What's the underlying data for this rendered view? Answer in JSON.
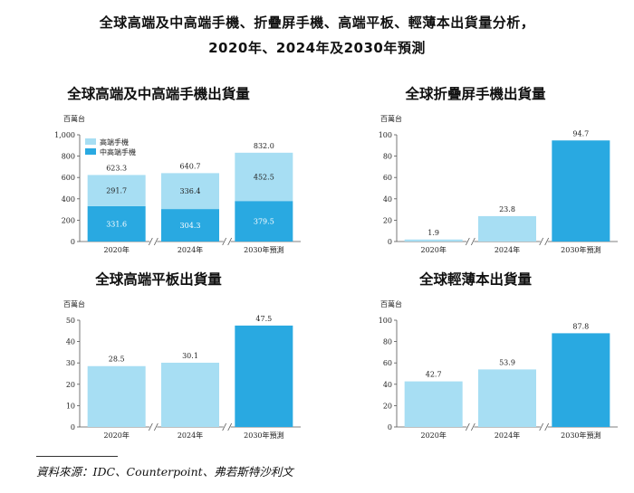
{
  "title_line1": "全球高端及中高端手機、折疊屏手機、高端平板、輕薄本出貨量分析，",
  "title_line2": "2020年、2024年及2030年預測",
  "source": "資料來源：IDC、Counterpoint、弗若斯特沙利文",
  "colors": {
    "light": "#a7def3",
    "dark": "#29a9e1"
  },
  "chart_data": [
    {
      "type": "bar",
      "stacked": true,
      "title": "全球高端及中高端手機出貨量",
      "unit": "百萬台",
      "categories": [
        "2020年",
        "2024年",
        "2030年預測"
      ],
      "ylim": [
        0,
        1000
      ],
      "yticks": [
        "0",
        "200",
        "400",
        "600",
        "800",
        "1,000"
      ],
      "series": [
        {
          "name": "中高端手機",
          "color": "#29a9e1",
          "values": [
            331.6,
            304.3,
            379.5
          ],
          "labels": [
            "331.6",
            "304.3",
            "379.5"
          ]
        },
        {
          "name": "高端手機",
          "color": "#a7def3",
          "values": [
            291.7,
            336.4,
            452.5
          ],
          "labels": [
            "291.7",
            "336.4",
            "452.5"
          ]
        }
      ],
      "totals": [
        "623.3",
        "640.7",
        "832.0"
      ],
      "legend": "top-left"
    },
    {
      "type": "bar",
      "title": "全球折疊屏手機出貨量",
      "unit": "百萬台",
      "categories": [
        "2020年",
        "2024年",
        "2030年預測"
      ],
      "ylim": [
        0,
        100
      ],
      "yticks": [
        "0",
        "20",
        "40",
        "60",
        "80",
        "100"
      ],
      "values": [
        1.9,
        23.8,
        94.7
      ],
      "labels": [
        "1.9",
        "23.8",
        "94.7"
      ],
      "colors": [
        "#a7def3",
        "#a7def3",
        "#29a9e1"
      ]
    },
    {
      "type": "bar",
      "title": "全球高端平板出貨量",
      "unit": "百萬台",
      "categories": [
        "2020年",
        "2024年",
        "2030年預測"
      ],
      "ylim": [
        0,
        50
      ],
      "yticks": [
        "0",
        "10",
        "20",
        "30",
        "40",
        "50"
      ],
      "values": [
        28.5,
        30.1,
        47.5
      ],
      "labels": [
        "28.5",
        "30.1",
        "47.5"
      ],
      "colors": [
        "#a7def3",
        "#a7def3",
        "#29a9e1"
      ]
    },
    {
      "type": "bar",
      "title": "全球輕薄本出貨量",
      "unit": "百萬台",
      "categories": [
        "2020年",
        "2024年",
        "2030年預測"
      ],
      "ylim": [
        0,
        100
      ],
      "yticks": [
        "0",
        "20",
        "40",
        "60",
        "80",
        "100"
      ],
      "values": [
        42.7,
        53.9,
        87.8
      ],
      "labels": [
        "42.7",
        "53.9",
        "87.8"
      ],
      "colors": [
        "#a7def3",
        "#a7def3",
        "#29a9e1"
      ]
    }
  ]
}
